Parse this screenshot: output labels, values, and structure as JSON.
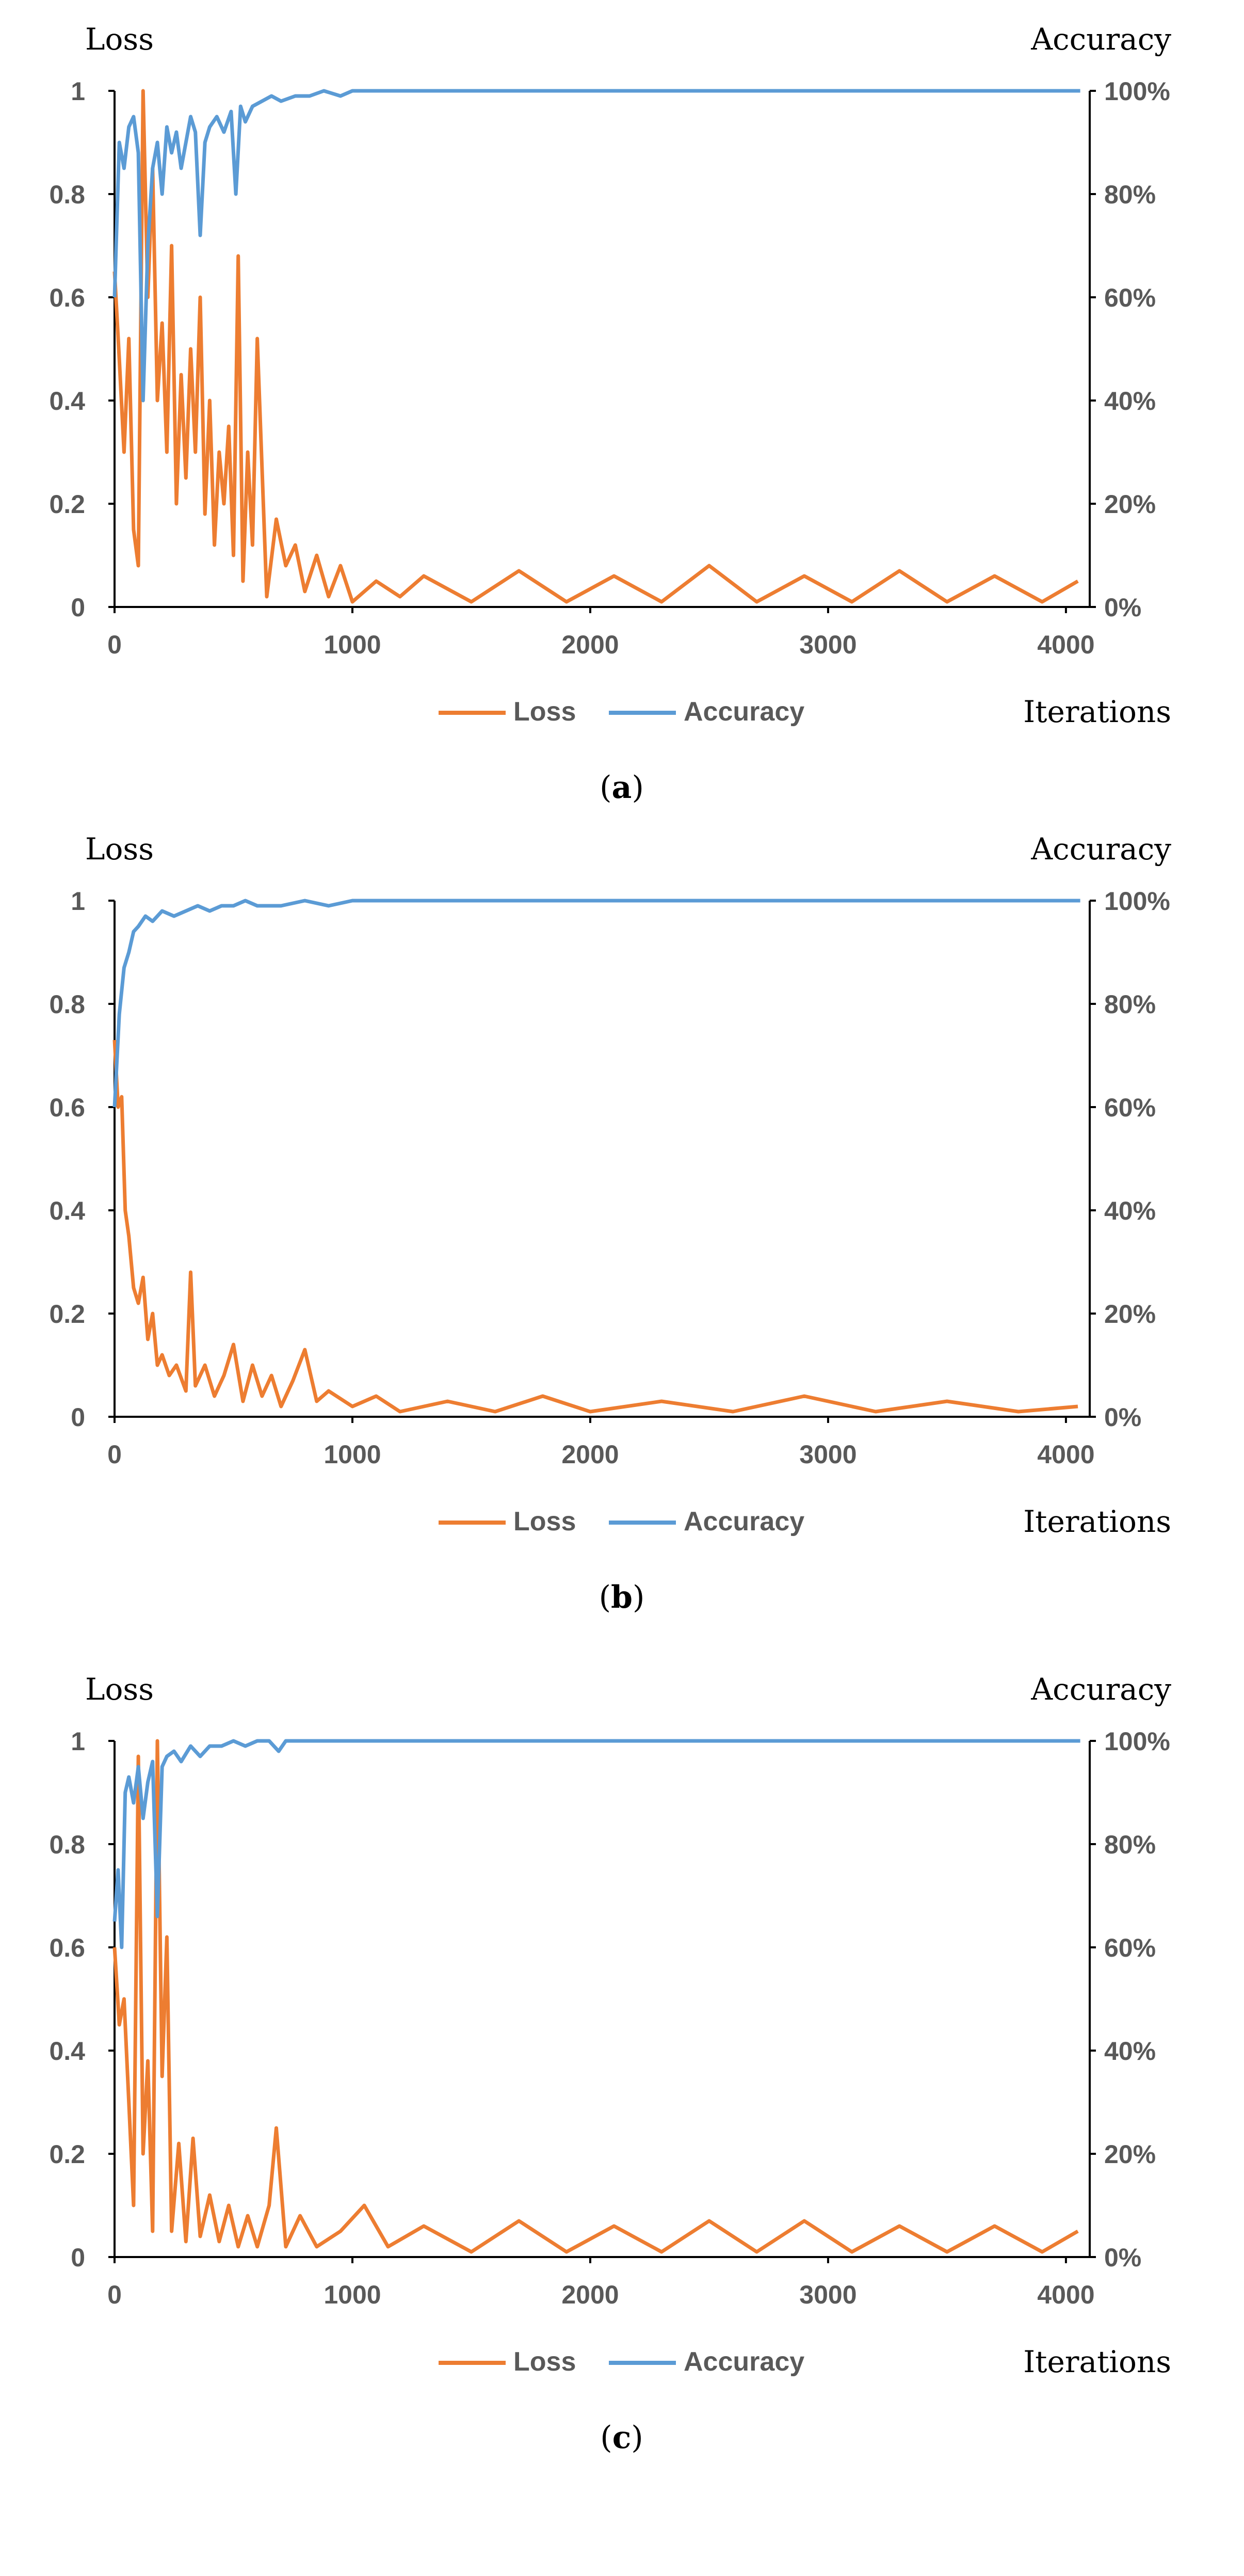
{
  "colors": {
    "loss": "#ED7D31",
    "accuracy": "#5B9BD5",
    "axis": "#000000",
    "tick_text": "#595959",
    "caption": "#000000"
  },
  "chart_data": [
    {
      "type": "line",
      "panel": "a",
      "caption_open": "(",
      "caption_letter": "a",
      "caption_close": ")",
      "left_axis_title": "Loss",
      "right_axis_title": "Accuracy",
      "xlabel": "Iterations",
      "xlim": [
        0,
        4100
      ],
      "y_left_lim": [
        0,
        1
      ],
      "y_right_lim": [
        0,
        1
      ],
      "x_ticks": [
        "0",
        "1000",
        "2000",
        "3000",
        "4000"
      ],
      "x_tick_values": [
        0,
        1000,
        2000,
        3000,
        4000
      ],
      "y_left_ticks": [
        "0",
        "0.2",
        "0.4",
        "0.6",
        "0.8",
        "1"
      ],
      "y_right_ticks": [
        "0%",
        "20%",
        "40%",
        "60%",
        "80%",
        "100%"
      ],
      "legend": [
        "Loss",
        "Accuracy"
      ],
      "legend_position": "bottom",
      "series": [
        {
          "name": "Loss",
          "x": [
            0,
            20,
            40,
            60,
            80,
            100,
            120,
            140,
            160,
            180,
            200,
            220,
            240,
            260,
            280,
            300,
            320,
            340,
            360,
            380,
            400,
            420,
            440,
            460,
            480,
            500,
            520,
            540,
            560,
            580,
            600,
            640,
            680,
            720,
            760,
            800,
            850,
            900,
            950,
            1000,
            1100,
            1200,
            1300,
            1500,
            1700,
            1900,
            2100,
            2300,
            2500,
            2700,
            2900,
            3100,
            3300,
            3500,
            3700,
            3900,
            4050
          ],
          "y": [
            0.65,
            0.48,
            0.3,
            0.52,
            0.15,
            0.08,
            1.0,
            0.6,
            0.85,
            0.4,
            0.55,
            0.3,
            0.7,
            0.2,
            0.45,
            0.25,
            0.5,
            0.3,
            0.6,
            0.18,
            0.4,
            0.12,
            0.3,
            0.2,
            0.35,
            0.1,
            0.68,
            0.05,
            0.3,
            0.12,
            0.52,
            0.02,
            0.17,
            0.08,
            0.12,
            0.03,
            0.1,
            0.02,
            0.08,
            0.01,
            0.05,
            0.02,
            0.06,
            0.01,
            0.07,
            0.01,
            0.06,
            0.01,
            0.08,
            0.01,
            0.06,
            0.01,
            0.07,
            0.01,
            0.06,
            0.01,
            0.05
          ]
        },
        {
          "name": "Accuracy",
          "x": [
            0,
            20,
            40,
            60,
            80,
            100,
            120,
            140,
            160,
            180,
            200,
            220,
            240,
            260,
            280,
            300,
            320,
            340,
            360,
            380,
            400,
            430,
            460,
            490,
            510,
            530,
            550,
            580,
            620,
            660,
            700,
            760,
            820,
            880,
            950,
            1000,
            1100,
            1300,
            1600,
            2000,
            2500,
            3000,
            3500,
            4000,
            4060
          ],
          "y": [
            0.6,
            0.9,
            0.85,
            0.93,
            0.95,
            0.88,
            0.4,
            0.7,
            0.85,
            0.9,
            0.8,
            0.93,
            0.88,
            0.92,
            0.85,
            0.9,
            0.95,
            0.92,
            0.72,
            0.9,
            0.93,
            0.95,
            0.92,
            0.96,
            0.8,
            0.97,
            0.94,
            0.97,
            0.98,
            0.99,
            0.98,
            0.99,
            0.99,
            1.0,
            0.99,
            1.0,
            1.0,
            1.0,
            1.0,
            1.0,
            1.0,
            1.0,
            1.0,
            1.0,
            1.0
          ]
        }
      ]
    },
    {
      "type": "line",
      "panel": "b",
      "caption_open": "(",
      "caption_letter": "b",
      "caption_close": ")",
      "left_axis_title": "Loss",
      "right_axis_title": "Accuracy",
      "xlabel": "Iterations",
      "xlim": [
        0,
        4100
      ],
      "y_left_lim": [
        0,
        1
      ],
      "y_right_lim": [
        0,
        1
      ],
      "x_ticks": [
        "0",
        "1000",
        "2000",
        "3000",
        "4000"
      ],
      "x_tick_values": [
        0,
        1000,
        2000,
        3000,
        4000
      ],
      "y_left_ticks": [
        "0",
        "0.2",
        "0.4",
        "0.6",
        "0.8",
        "1"
      ],
      "y_right_ticks": [
        "0%",
        "20%",
        "40%",
        "60%",
        "80%",
        "100%"
      ],
      "legend": [
        "Loss",
        "Accuracy"
      ],
      "legend_position": "bottom",
      "series": [
        {
          "name": "Loss",
          "x": [
            0,
            15,
            30,
            45,
            60,
            80,
            100,
            120,
            140,
            160,
            180,
            200,
            230,
            260,
            300,
            320,
            340,
            380,
            420,
            460,
            500,
            540,
            580,
            620,
            660,
            700,
            750,
            800,
            850,
            900,
            1000,
            1100,
            1200,
            1400,
            1600,
            1800,
            2000,
            2300,
            2600,
            2900,
            3200,
            3500,
            3800,
            4050
          ],
          "y": [
            0.73,
            0.6,
            0.62,
            0.4,
            0.35,
            0.25,
            0.22,
            0.27,
            0.15,
            0.2,
            0.1,
            0.12,
            0.08,
            0.1,
            0.05,
            0.28,
            0.06,
            0.1,
            0.04,
            0.08,
            0.14,
            0.03,
            0.1,
            0.04,
            0.08,
            0.02,
            0.07,
            0.13,
            0.03,
            0.05,
            0.02,
            0.04,
            0.01,
            0.03,
            0.01,
            0.04,
            0.01,
            0.03,
            0.01,
            0.04,
            0.01,
            0.03,
            0.01,
            0.02
          ]
        },
        {
          "name": "Accuracy",
          "x": [
            0,
            20,
            40,
            60,
            80,
            100,
            130,
            160,
            200,
            250,
            300,
            350,
            400,
            450,
            500,
            550,
            600,
            700,
            800,
            900,
            1000,
            1200,
            1500,
            2000,
            2500,
            3000,
            3500,
            4000,
            4060
          ],
          "y": [
            0.6,
            0.78,
            0.87,
            0.9,
            0.94,
            0.95,
            0.97,
            0.96,
            0.98,
            0.97,
            0.98,
            0.99,
            0.98,
            0.99,
            0.99,
            1.0,
            0.99,
            0.99,
            1.0,
            0.99,
            1.0,
            1.0,
            1.0,
            1.0,
            1.0,
            1.0,
            1.0,
            1.0,
            1.0
          ]
        }
      ]
    },
    {
      "type": "line",
      "panel": "c",
      "caption_open": "(",
      "caption_letter": "c",
      "caption_close": ")",
      "left_axis_title": "Loss",
      "right_axis_title": "Accuracy",
      "xlabel": "Iterations",
      "xlim": [
        0,
        4100
      ],
      "y_left_lim": [
        0,
        1
      ],
      "y_right_lim": [
        0,
        1
      ],
      "x_ticks": [
        "0",
        "1000",
        "2000",
        "3000",
        "4000"
      ],
      "x_tick_values": [
        0,
        1000,
        2000,
        3000,
        4000
      ],
      "y_left_ticks": [
        "0",
        "0.2",
        "0.4",
        "0.6",
        "0.8",
        "1"
      ],
      "y_right_ticks": [
        "0%",
        "20%",
        "40%",
        "60%",
        "80%",
        "100%"
      ],
      "legend": [
        "Loss",
        "Accuracy"
      ],
      "legend_position": "bottom",
      "series": [
        {
          "name": "Loss",
          "x": [
            0,
            20,
            40,
            60,
            80,
            100,
            120,
            140,
            160,
            180,
            200,
            220,
            240,
            270,
            300,
            330,
            360,
            400,
            440,
            480,
            520,
            560,
            600,
            650,
            680,
            720,
            780,
            850,
            950,
            1050,
            1150,
            1300,
            1500,
            1700,
            1900,
            2100,
            2300,
            2500,
            2700,
            2900,
            3100,
            3300,
            3500,
            3700,
            3900,
            4050
          ],
          "y": [
            0.6,
            0.45,
            0.5,
            0.3,
            0.1,
            0.97,
            0.2,
            0.38,
            0.05,
            1.0,
            0.35,
            0.62,
            0.05,
            0.22,
            0.03,
            0.23,
            0.04,
            0.12,
            0.03,
            0.1,
            0.02,
            0.08,
            0.02,
            0.1,
            0.25,
            0.02,
            0.08,
            0.02,
            0.05,
            0.1,
            0.02,
            0.06,
            0.01,
            0.07,
            0.01,
            0.06,
            0.01,
            0.07,
            0.01,
            0.07,
            0.01,
            0.06,
            0.01,
            0.06,
            0.01,
            0.05
          ]
        },
        {
          "name": "Accuracy",
          "x": [
            0,
            15,
            30,
            45,
            60,
            80,
            100,
            120,
            140,
            160,
            180,
            200,
            220,
            250,
            280,
            320,
            360,
            400,
            450,
            500,
            550,
            600,
            650,
            690,
            720,
            800,
            900,
            1000,
            1200,
            1500,
            2000,
            2500,
            3000,
            3500,
            4000,
            4060
          ],
          "y": [
            0.65,
            0.75,
            0.6,
            0.9,
            0.93,
            0.88,
            0.95,
            0.85,
            0.92,
            0.96,
            0.66,
            0.95,
            0.97,
            0.98,
            0.96,
            0.99,
            0.97,
            0.99,
            0.99,
            1.0,
            0.99,
            1.0,
            1.0,
            0.98,
            1.0,
            1.0,
            1.0,
            1.0,
            1.0,
            1.0,
            1.0,
            1.0,
            1.0,
            1.0,
            1.0,
            1.0
          ]
        }
      ]
    }
  ]
}
